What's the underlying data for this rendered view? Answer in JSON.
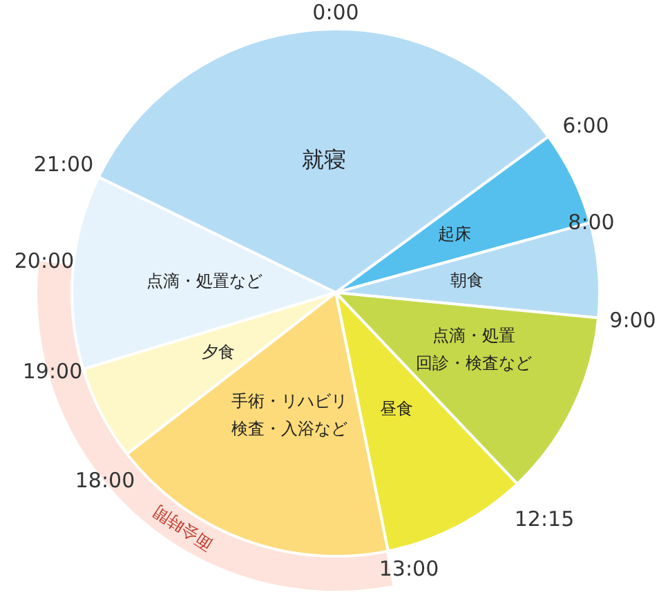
{
  "chart_data": {
    "type": "pie",
    "categories": [
      "就寝",
      "起床",
      "朝食",
      "点滴・処置回診・検査など",
      "昼食",
      "手術・リハビリ検査・入浴など",
      "夕食",
      "点滴・処置など"
    ],
    "values": [
      32.7,
      5.8,
      5.8,
      11.4,
      8.9,
      17.7,
      5.8,
      11.9
    ],
    "colors": [
      "#b5dcf5",
      "#55c0ee",
      "#b5dcf5",
      "#c5d84a",
      "#eee83a",
      "#fddb7a",
      "#fef8c8",
      "#e6f3fc"
    ],
    "annotations": [
      "0:00",
      "6:00",
      "8:00",
      "9:00",
      "12:15",
      "13:00",
      "18:00",
      "19:00",
      "20:00",
      "21:00",
      "面会時間"
    ],
    "legend": false
  }
}
